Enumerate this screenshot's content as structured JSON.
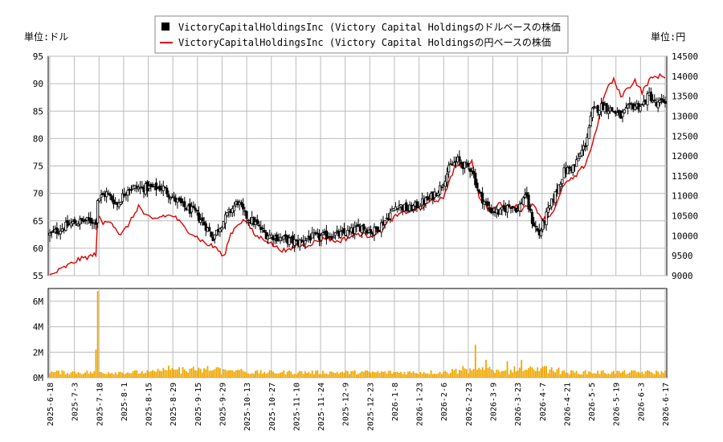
{
  "chart_data": {
    "type": "candlestick",
    "legend": {
      "placement": "top-center",
      "entries": [
        {
          "label": "VictoryCapitalHoldingsInc (Victory Capital Holdingsのドルベースの株価",
          "color": "#000000",
          "marker": "square"
        },
        {
          "label": "VictoryCapitalHoldingsInc (Victory Capital Holdingsの円ベースの株価",
          "color": "#dd0000",
          "marker": "line"
        }
      ]
    },
    "left_unit_label": "単位:ドル",
    "right_unit_label": "単位:円",
    "price_axis": {
      "min": 55,
      "max": 95,
      "ticks": [
        "95",
        "90",
        "85",
        "80",
        "75",
        "70",
        "65",
        "60",
        "55"
      ]
    },
    "yen_axis": {
      "min": 9000,
      "max": 14500,
      "ticks": [
        "14500",
        "14000",
        "13500",
        "13000",
        "12500",
        "12000",
        "11500",
        "11000",
        "10500",
        "10000",
        "9500",
        "9000"
      ]
    },
    "volume_axis": {
      "min": 0,
      "max": 7,
      "ticks": [
        "6M",
        "4M",
        "2M",
        "0M"
      ]
    },
    "x_labels": [
      "2025-6-18",
      "2025-7-3",
      "2025-7-18",
      "2025-8-1",
      "2025-8-15",
      "2025-8-29",
      "2025-9-15",
      "2025-9-29",
      "2025-10-13",
      "2025-10-27",
      "2025-11-10",
      "2025-11-24",
      "2025-12-9",
      "2025-12-23",
      "2026-1-8",
      "2026-1-23",
      "2026-2-6",
      "2026-2-23",
      "2026-3-9",
      "2026-3-23",
      "2026-4-7",
      "2026-4-21",
      "2026-5-5",
      "2026-5-19",
      "2026-6-3",
      "2026-6-17"
    ],
    "grid": true,
    "colors": {
      "candle": "#000000",
      "yen_line": "#dd0000",
      "volume": "#f0a800",
      "grid": "#bbbbbb"
    },
    "series_keypoints": {
      "price_close": [
        [
          0,
          62.5
        ],
        [
          6,
          63.5
        ],
        [
          12,
          64.5
        ],
        [
          20,
          65
        ],
        [
          26,
          65
        ],
        [
          27,
          69
        ],
        [
          32,
          70
        ],
        [
          38,
          68
        ],
        [
          44,
          71
        ],
        [
          52,
          71
        ],
        [
          58,
          71
        ],
        [
          64,
          71
        ],
        [
          70,
          69
        ],
        [
          76,
          67.5
        ],
        [
          82,
          66.5
        ],
        [
          88,
          64
        ],
        [
          92,
          62
        ],
        [
          96,
          64
        ],
        [
          100,
          66
        ],
        [
          106,
          68.5
        ],
        [
          110,
          66
        ],
        [
          116,
          64.5
        ],
        [
          122,
          62.5
        ],
        [
          128,
          62
        ],
        [
          134,
          61.5
        ],
        [
          140,
          61
        ],
        [
          146,
          62
        ],
        [
          152,
          62
        ],
        [
          158,
          62.5
        ],
        [
          164,
          62.5
        ],
        [
          170,
          63
        ],
        [
          176,
          64
        ],
        [
          182,
          63
        ],
        [
          186,
          64
        ],
        [
          190,
          65.5
        ],
        [
          196,
          68
        ],
        [
          202,
          67
        ],
        [
          208,
          68
        ],
        [
          214,
          69
        ],
        [
          220,
          71
        ],
        [
          226,
          75
        ],
        [
          230,
          76
        ],
        [
          234,
          75
        ],
        [
          238,
          74.5
        ],
        [
          242,
          70
        ],
        [
          248,
          67
        ],
        [
          254,
          66.5
        ],
        [
          260,
          68
        ],
        [
          264,
          67
        ],
        [
          268,
          70
        ],
        [
          272,
          65
        ],
        [
          276,
          62.5
        ],
        [
          280,
          66
        ],
        [
          284,
          69
        ],
        [
          290,
          74
        ],
        [
          296,
          75
        ],
        [
          302,
          79
        ],
        [
          306,
          85
        ],
        [
          312,
          86
        ],
        [
          318,
          85
        ],
        [
          322,
          84
        ],
        [
          328,
          86
        ],
        [
          334,
          86
        ],
        [
          338,
          88
        ],
        [
          342,
          86
        ],
        [
          347,
          87
        ]
      ],
      "yen": [
        [
          0,
          9000
        ],
        [
          8,
          9200
        ],
        [
          16,
          9400
        ],
        [
          24,
          9500
        ],
        [
          26,
          9550
        ],
        [
          27,
          10500
        ],
        [
          30,
          10300
        ],
        [
          34,
          10400
        ],
        [
          40,
          10000
        ],
        [
          46,
          10400
        ],
        [
          50,
          10750
        ],
        [
          54,
          10500
        ],
        [
          58,
          10400
        ],
        [
          64,
          10500
        ],
        [
          70,
          10500
        ],
        [
          76,
          10200
        ],
        [
          82,
          10000
        ],
        [
          88,
          9800
        ],
        [
          94,
          9700
        ],
        [
          98,
          9450
        ],
        [
          102,
          10050
        ],
        [
          106,
          10300
        ],
        [
          110,
          10400
        ],
        [
          116,
          10000
        ],
        [
          122,
          9900
        ],
        [
          128,
          9700
        ],
        [
          134,
          9600
        ],
        [
          140,
          9800
        ],
        [
          144,
          9750
        ],
        [
          150,
          9850
        ],
        [
          156,
          9950
        ],
        [
          162,
          9850
        ],
        [
          168,
          9950
        ],
        [
          174,
          10050
        ],
        [
          180,
          10000
        ],
        [
          186,
          10100
        ],
        [
          192,
          10400
        ],
        [
          198,
          10550
        ],
        [
          204,
          10650
        ],
        [
          210,
          10700
        ],
        [
          216,
          10900
        ],
        [
          222,
          10900
        ],
        [
          226,
          11500
        ],
        [
          230,
          11800
        ],
        [
          234,
          11700
        ],
        [
          238,
          11900
        ],
        [
          242,
          11000
        ],
        [
          248,
          10600
        ],
        [
          254,
          10800
        ],
        [
          258,
          10700
        ],
        [
          262,
          10750
        ],
        [
          266,
          10650
        ],
        [
          270,
          10800
        ],
        [
          274,
          10700
        ],
        [
          278,
          10400
        ],
        [
          282,
          10500
        ],
        [
          286,
          10800
        ],
        [
          290,
          11300
        ],
        [
          296,
          11450
        ],
        [
          302,
          11800
        ],
        [
          306,
          12300
        ],
        [
          310,
          13000
        ],
        [
          314,
          13700
        ],
        [
          318,
          13900
        ],
        [
          322,
          13500
        ],
        [
          326,
          13700
        ],
        [
          330,
          13900
        ],
        [
          334,
          13600
        ],
        [
          338,
          13900
        ],
        [
          342,
          14000
        ],
        [
          347,
          14000
        ]
      ],
      "volume_events": [
        [
          27,
          6.8
        ],
        [
          26,
          2.2
        ],
        [
          240,
          2.6
        ],
        [
          246,
          1.4
        ],
        [
          258,
          1.3
        ],
        [
          262,
          0.9
        ],
        [
          266,
          1.4
        ],
        [
          280,
          0.9
        ]
      ]
    }
  }
}
